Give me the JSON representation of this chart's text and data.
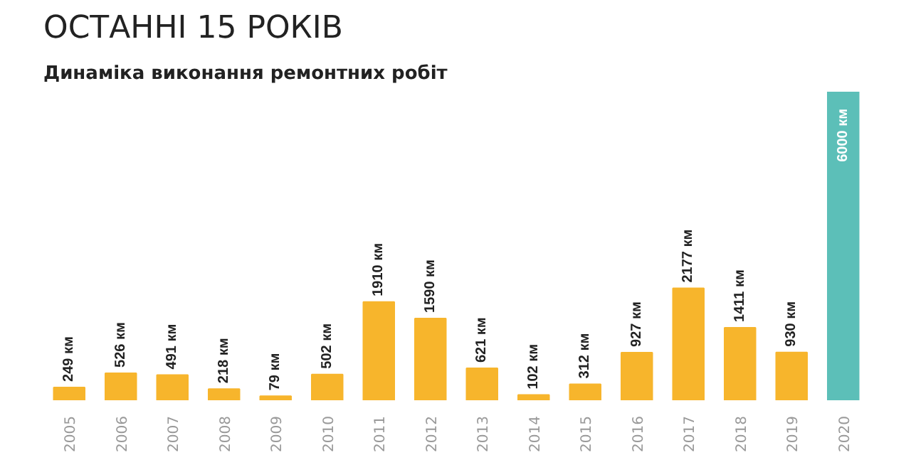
{
  "chart_data": {
    "type": "bar",
    "title": "ОСТАННІ 15 РОКІВ",
    "subtitle": "Динаміка виконання ремонтних робіт",
    "categories": [
      "2005",
      "2006",
      "2007",
      "2008",
      "2009",
      "2010",
      "2011",
      "2012",
      "2013",
      "2014",
      "2015",
      "2016",
      "2017",
      "2018",
      "2019",
      "2020"
    ],
    "values": [
      249,
      526,
      491,
      218,
      79,
      502,
      1910,
      1590,
      621,
      102,
      312,
      927,
      2177,
      1411,
      930,
      6000
    ],
    "value_labels": [
      "249 км",
      "526 км",
      "491 км",
      "218 км",
      "79 км",
      "502 км",
      "1910 км",
      "1590 км",
      "621 км",
      "102 км",
      "312 км",
      "927 км",
      "2177 км",
      "1411 км",
      "930 км",
      "6000 км"
    ],
    "colors": [
      "#f7b52c",
      "#f7b52c",
      "#f7b52c",
      "#f7b52c",
      "#f7b52c",
      "#f7b52c",
      "#f7b52c",
      "#f7b52c",
      "#f7b52c",
      "#f7b52c",
      "#f7b52c",
      "#f7b52c",
      "#f7b52c",
      "#f7b52c",
      "#f7b52c",
      "#5cbfb8"
    ],
    "grid": false
  }
}
